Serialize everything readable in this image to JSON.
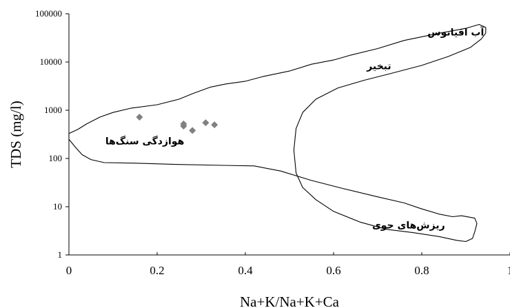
{
  "chart_data": {
    "type": "scatter",
    "xlabel": "Na+K/Na+K+Ca",
    "ylabel": "TDS (mg/l)",
    "xlim": [
      0,
      1
    ],
    "ylim": [
      1,
      100000
    ],
    "y_scale": "log",
    "x_ticks": [
      "0",
      "0.2",
      "0.4",
      "0.6",
      "0.8",
      "1"
    ],
    "x_tick_values": [
      0,
      0.2,
      0.4,
      0.6,
      0.8,
      1
    ],
    "y_ticks": [
      "1",
      "10",
      "100",
      "1000",
      "10000",
      "100000"
    ],
    "y_tick_values": [
      1,
      10,
      100,
      1000,
      10000,
      100000
    ],
    "grid": false,
    "marker_color": "#808080",
    "points": [
      {
        "x": 0.16,
        "y": 720
      },
      {
        "x": 0.26,
        "y": 520
      },
      {
        "x": 0.26,
        "y": 470
      },
      {
        "x": 0.28,
        "y": 380
      },
      {
        "x": 0.31,
        "y": 550
      },
      {
        "x": 0.33,
        "y": 500
      }
    ],
    "annotations": [
      {
        "text": "آب اقیانوس",
        "x": 0.877,
        "y": 42000
      },
      {
        "text": "تبخیر",
        "x": 0.703,
        "y": 8400
      },
      {
        "text": "هوازدگی سنگ‌ها",
        "x": 0.172,
        "y": 230
      },
      {
        "text": "ریزش‌های جوی",
        "x": 0.77,
        "y": 4.2
      }
    ],
    "envelope": [
      [
        0.0,
        250
      ],
      [
        0.015,
        170
      ],
      [
        0.03,
        120
      ],
      [
        0.05,
        95
      ],
      [
        0.08,
        82
      ],
      [
        0.15,
        80
      ],
      [
        0.25,
        75
      ],
      [
        0.35,
        72
      ],
      [
        0.42,
        70
      ],
      [
        0.48,
        55
      ],
      [
        0.55,
        35
      ],
      [
        0.62,
        24
      ],
      [
        0.7,
        16
      ],
      [
        0.76,
        12
      ],
      [
        0.8,
        9
      ],
      [
        0.84,
        7
      ],
      [
        0.87,
        6.2
      ],
      [
        0.89,
        6.5
      ],
      [
        0.92,
        5.8
      ],
      [
        0.925,
        4.5
      ],
      [
        0.92,
        3
      ],
      [
        0.915,
        2.2
      ],
      [
        0.9,
        1.9
      ],
      [
        0.88,
        2
      ],
      [
        0.84,
        2.4
      ],
      [
        0.78,
        2.9
      ],
      [
        0.72,
        3.4
      ],
      [
        0.66,
        4.8
      ],
      [
        0.6,
        8
      ],
      [
        0.56,
        14
      ],
      [
        0.53,
        25
      ],
      [
        0.515,
        50
      ],
      [
        0.51,
        150
      ],
      [
        0.515,
        420
      ],
      [
        0.53,
        900
      ],
      [
        0.56,
        1700
      ],
      [
        0.61,
        2900
      ],
      [
        0.67,
        4200
      ],
      [
        0.73,
        5800
      ],
      [
        0.8,
        8500
      ],
      [
        0.86,
        13000
      ],
      [
        0.91,
        20000
      ],
      [
        0.935,
        30000
      ],
      [
        0.945,
        40000
      ],
      [
        0.945,
        52000
      ],
      [
        0.93,
        60000
      ],
      [
        0.9,
        50000
      ],
      [
        0.83,
        38000
      ],
      [
        0.76,
        28000
      ],
      [
        0.7,
        19000
      ],
      [
        0.64,
        14000
      ],
      [
        0.6,
        11000
      ],
      [
        0.55,
        9000
      ],
      [
        0.5,
        6500
      ],
      [
        0.44,
        5000
      ],
      [
        0.4,
        4000
      ],
      [
        0.355,
        3500
      ],
      [
        0.32,
        3000
      ],
      [
        0.28,
        2200
      ],
      [
        0.25,
        1700
      ],
      [
        0.2,
        1300
      ],
      [
        0.14,
        1100
      ],
      [
        0.1,
        900
      ],
      [
        0.07,
        720
      ],
      [
        0.04,
        520
      ],
      [
        0.02,
        400
      ],
      [
        0.0,
        330
      ]
    ]
  }
}
